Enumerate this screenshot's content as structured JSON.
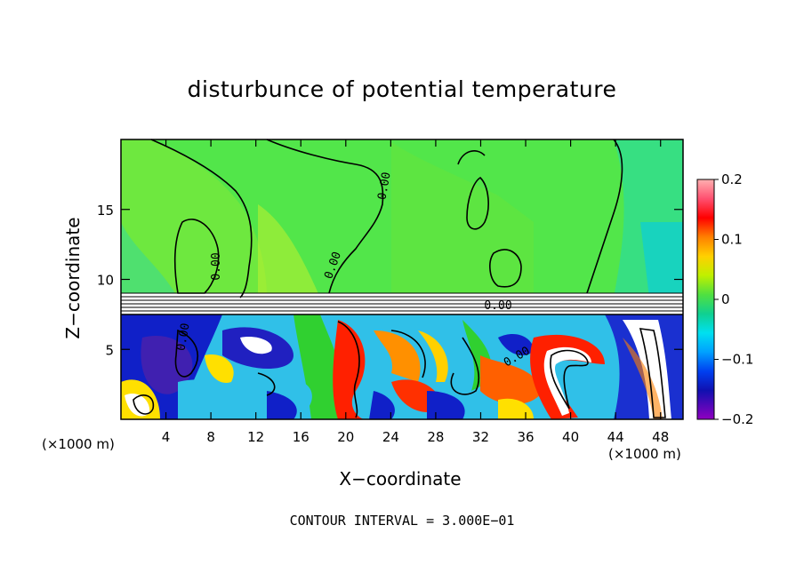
{
  "chart_data": {
    "type": "heatmap",
    "title": "disturbunce of potential temperature",
    "xlabel": "X−coordinate",
    "ylabel": "Z−coordinate",
    "x_unit_left": "(×1000 m)",
    "x_unit_right": "(×1000 m)",
    "footer": "CONTOUR INTERVAL = 3.000E−01",
    "xlim": [
      0,
      50
    ],
    "ylim": [
      0,
      20
    ],
    "x_ticks": [
      4,
      8,
      12,
      16,
      20,
      24,
      28,
      32,
      36,
      40,
      44,
      48
    ],
    "y_ticks": [
      5,
      10,
      15
    ],
    "colorbar": {
      "min": -0.2,
      "max": 0.2,
      "tick_values": [
        0.2,
        0.1,
        0,
        -0.1,
        -0.2
      ],
      "tick_labels": [
        "0.2",
        "0.1",
        "0",
        "−0.1",
        "−0.2"
      ],
      "colors": [
        "#ffb0b0",
        "#ff6080",
        "#ff0000",
        "#ff4a00",
        "#ff8c00",
        "#ffc800",
        "#f0f000",
        "#b8f000",
        "#70e800",
        "#30d830",
        "#10d070",
        "#00d8b0",
        "#00e0f0",
        "#00b0ff",
        "#0070ff",
        "#0030e0",
        "#1010b0",
        "#5000b0",
        "#9000c0"
      ]
    },
    "contour_labels": [
      "0.00",
      "0.00",
      "0.00",
      "0.00",
      "0.00",
      "0.00"
    ],
    "colors": {
      "upper_field": "#52e64a",
      "frame": "#000000"
    }
  }
}
